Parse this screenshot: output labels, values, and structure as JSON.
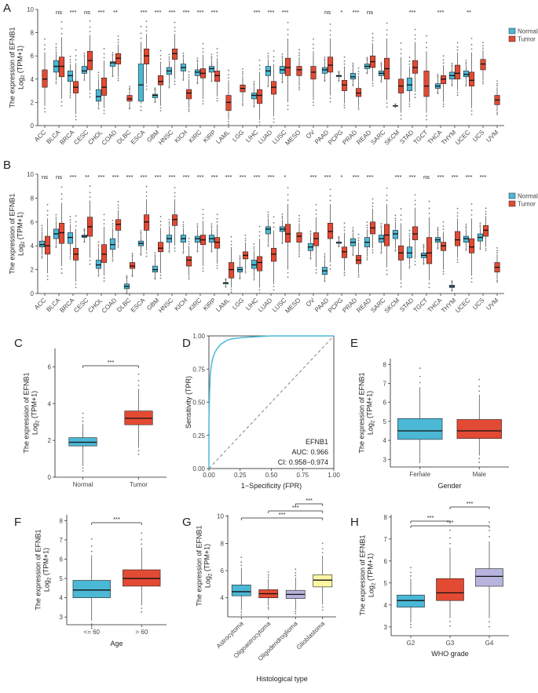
{
  "colors": {
    "normal": "#4bb8d6",
    "tumor": "#e34a33",
    "g2": "#4bb8d6",
    "g3": "#e34a33",
    "g4": "#b7b5de",
    "astro": "#4bb8d6",
    "oligoastro": "#e34a33",
    "oligodendro": "#b7b5de",
    "gbm": "#fbf6a3",
    "roc": "#4bb8d6"
  },
  "common": {
    "ylabel_line1": "The expression of EFNB1",
    "ylabel_log": "Log",
    "ylabel_sub": "2",
    "ylabel_tail": " (TPM+1)"
  },
  "chart_data": [
    {
      "panel": "A",
      "type": "boxplot",
      "ylim": [
        0,
        10
      ],
      "yticks": [
        0,
        2,
        4,
        6,
        8,
        10
      ],
      "legend": [
        "Normal",
        "Tumor"
      ],
      "categories": [
        "ACC",
        "BLCA",
        "BRCA",
        "CESC",
        "CHOL",
        "COAD",
        "DLBC",
        "ESCA",
        "GBM",
        "HNSC",
        "KICH",
        "KIRC",
        "KIRP",
        "LAML",
        "LGG",
        "LIHC",
        "LUAD",
        "LUSC",
        "MESO",
        "OV",
        "PAAD",
        "PCPG",
        "PRAD",
        "READ",
        "SARC",
        "SKCM",
        "STAD",
        "TGCT",
        "THCA",
        "THYM",
        "UCEC",
        "UCS",
        "UVM"
      ],
      "significance": [
        "",
        "ns",
        "***",
        "ns",
        "***",
        "**",
        "",
        "***",
        "***",
        "***",
        "***",
        "***",
        "***",
        "",
        "",
        "***",
        "***",
        "***",
        "",
        "",
        "ns",
        "*",
        "***",
        "ns",
        "",
        "",
        "***",
        "",
        "***",
        "",
        "**",
        "",
        ""
      ],
      "normal": [
        null,
        [
          3.9,
          4.6,
          5.1,
          5.6,
          6.4
        ],
        [
          2.7,
          3.8,
          4.3,
          4.7,
          5.3
        ],
        [
          4.1,
          4.5,
          4.7,
          5.1,
          5.8
        ],
        [
          1.7,
          2.1,
          2.5,
          3.1,
          4.0
        ],
        [
          4.4,
          5.1,
          5.4,
          5.5,
          5.9
        ],
        null,
        [
          1.9,
          2.1,
          3.5,
          5.3,
          7.2
        ],
        [
          2.1,
          2.4,
          2.6,
          2.7,
          3.0
        ],
        [
          3.5,
          4.4,
          4.7,
          5.0,
          5.6
        ],
        [
          4.1,
          4.7,
          5.0,
          5.3,
          5.8
        ],
        [
          3.8,
          4.3,
          4.6,
          4.8,
          5.4
        ],
        [
          4.0,
          4.6,
          4.9,
          5.1,
          5.7
        ],
        null,
        null,
        [
          1.8,
          2.3,
          2.6,
          2.8,
          3.4
        ],
        [
          3.6,
          4.3,
          4.7,
          5.1,
          5.7
        ],
        [
          3.9,
          4.5,
          4.8,
          5.1,
          5.7
        ],
        null,
        null,
        [
          4.0,
          4.5,
          4.8,
          5.0,
          5.5
        ],
        [
          3.9,
          4.2,
          4.3,
          4.3,
          4.5
        ],
        [
          3.6,
          4.0,
          4.2,
          4.5,
          5.0
        ],
        [
          4.6,
          4.9,
          5.1,
          5.3,
          5.6
        ],
        [
          3.9,
          4.3,
          4.5,
          4.7,
          5.1
        ],
        [
          1.6,
          1.7,
          1.7,
          1.7,
          1.8
        ],
        [
          2.0,
          3.0,
          3.5,
          4.1,
          5.1
        ],
        null,
        [
          2.9,
          3.2,
          3.4,
          3.6,
          4.1
        ],
        [
          3.6,
          4.0,
          4.3,
          4.6,
          5.0
        ],
        [
          3.6,
          4.2,
          4.4,
          4.7,
          5.2
        ],
        null,
        null
      ],
      "tumor": [
        [
          1.7,
          3.3,
          4.0,
          4.8,
          6.3
        ],
        [
          2.3,
          4.2,
          5.1,
          5.9,
          7.6
        ],
        [
          1.0,
          2.8,
          3.3,
          3.8,
          5.4
        ],
        [
          3.0,
          4.8,
          5.6,
          6.4,
          7.8
        ],
        [
          1.5,
          2.6,
          3.3,
          4.1,
          5.6
        ],
        [
          4.2,
          5.3,
          5.8,
          6.2,
          7.0
        ],
        [
          1.6,
          2.1,
          2.3,
          2.6,
          3.0
        ],
        [
          3.6,
          5.3,
          6.0,
          6.6,
          7.9
        ],
        [
          1.7,
          3.5,
          3.8,
          4.3,
          5.5
        ],
        [
          4.0,
          5.7,
          6.2,
          6.6,
          7.9
        ],
        [
          1.5,
          2.3,
          2.8,
          3.1,
          4.0
        ],
        [
          2.3,
          4.1,
          4.5,
          4.9,
          6.1
        ],
        [
          2.5,
          3.8,
          4.3,
          4.7,
          5.8
        ],
        [
          0.5,
          1.3,
          2.0,
          2.6,
          3.9
        ],
        [
          2.0,
          2.9,
          3.2,
          3.5,
          4.3
        ],
        [
          0.5,
          1.9,
          2.6,
          3.1,
          4.6
        ],
        [
          0.8,
          2.7,
          3.3,
          3.8,
          5.3
        ],
        [
          2.0,
          4.3,
          5.0,
          5.8,
          7.5
        ],
        [
          3.4,
          4.3,
          4.8,
          5.1,
          5.9
        ],
        [
          2.2,
          4.0,
          4.6,
          5.1,
          6.4
        ],
        [
          2.6,
          4.6,
          5.2,
          5.9,
          7.5
        ],
        [
          1.9,
          3.0,
          3.5,
          3.9,
          5.1
        ],
        [
          1.7,
          2.5,
          2.8,
          3.2,
          4.3
        ],
        [
          3.8,
          5.0,
          5.5,
          6.0,
          7.1
        ],
        [
          2.2,
          4.0,
          4.9,
          5.8,
          7.5
        ],
        [
          1.1,
          2.8,
          3.4,
          4.0,
          5.9
        ],
        [
          2.9,
          4.5,
          5.0,
          5.6,
          7.2
        ],
        [
          1.1,
          2.5,
          3.4,
          4.7,
          6.4
        ],
        [
          2.0,
          3.6,
          4.0,
          4.3,
          5.2
        ],
        [
          3.0,
          4.0,
          4.5,
          5.2,
          6.3
        ],
        [
          1.5,
          3.4,
          3.9,
          4.6,
          6.3
        ],
        [
          3.9,
          4.8,
          5.3,
          5.7,
          6.5
        ],
        [
          1.2,
          1.8,
          2.2,
          2.6,
          3.3
        ]
      ]
    },
    {
      "panel": "B",
      "type": "boxplot",
      "ylim": [
        0,
        10
      ],
      "yticks": [
        0,
        2,
        4,
        6,
        8,
        10
      ],
      "legend": [
        "Normal",
        "Tumor"
      ],
      "categories": [
        "ACC",
        "BLCA",
        "BRCA",
        "CESC",
        "CHOL",
        "COAD",
        "DLBC",
        "ESCA",
        "GBM",
        "HNSC",
        "KICH",
        "KIRC",
        "KIRP",
        "LAML",
        "LGG",
        "LIHC",
        "LUAD",
        "LUSC",
        "MESO",
        "OV",
        "PAAD",
        "PCPG",
        "PRAD",
        "READ",
        "SARC",
        "SKCM",
        "STAD",
        "TGCT",
        "THCA",
        "THYM",
        "UCEC",
        "UCS",
        "UVM"
      ],
      "significance": [
        "ns",
        "ns",
        "***",
        "**",
        "***",
        "***",
        "***",
        "***",
        "***",
        "***",
        "***",
        "***",
        "***",
        "***",
        "***",
        "***",
        "***",
        "*",
        "",
        "***",
        "***",
        "*",
        "***",
        "***",
        "",
        "***",
        "***",
        "ns",
        "***",
        "***",
        "***",
        "***",
        ""
      ],
      "normal": [
        [
          3.2,
          3.9,
          4.1,
          4.4,
          5.2
        ],
        [
          4.1,
          4.6,
          5.0,
          5.4,
          6.1
        ],
        [
          3.2,
          4.2,
          4.7,
          5.1,
          5.8
        ],
        [
          4.4,
          4.7,
          4.8,
          4.9,
          5.2
        ],
        [
          1.7,
          2.1,
          2.4,
          2.8,
          3.8
        ],
        [
          3.0,
          3.7,
          4.1,
          4.6,
          5.5
        ],
        [
          0.1,
          0.4,
          0.6,
          0.8,
          1.2
        ],
        [
          3.4,
          4.0,
          4.2,
          4.4,
          4.9
        ],
        [
          1.4,
          1.8,
          2.0,
          2.3,
          3.0
        ],
        [
          3.7,
          4.3,
          4.6,
          4.9,
          5.7
        ],
        [
          3.6,
          4.3,
          4.6,
          4.9,
          5.5
        ],
        [
          3.7,
          4.3,
          4.6,
          4.8,
          5.4
        ],
        [
          3.7,
          4.3,
          4.6,
          4.9,
          5.4
        ],
        [
          0.6,
          0.8,
          0.9,
          0.9,
          1.1
        ],
        [
          1.4,
          1.8,
          2.0,
          2.2,
          2.8
        ],
        [
          1.4,
          2.1,
          2.4,
          2.8,
          3.6
        ],
        [
          4.2,
          5.0,
          5.4,
          5.6,
          6.3
        ],
        [
          4.4,
          5.2,
          5.4,
          5.6,
          6.2
        ],
        null,
        [
          3.1,
          3.6,
          3.9,
          4.2,
          4.8
        ],
        [
          1.2,
          1.6,
          1.9,
          2.2,
          2.9
        ],
        [
          4.0,
          4.2,
          4.3,
          4.3,
          4.6
        ],
        [
          3.4,
          4.0,
          4.3,
          4.6,
          5.1
        ],
        [
          3.1,
          3.9,
          4.3,
          4.7,
          5.4
        ],
        [
          3.6,
          4.3,
          4.6,
          4.9,
          5.4
        ],
        [
          3.8,
          4.6,
          5.0,
          5.3,
          6.0
        ],
        [
          2.4,
          3.0,
          3.4,
          3.9,
          4.7
        ],
        [
          2.6,
          3.0,
          3.2,
          3.4,
          3.8
        ],
        [
          3.9,
          4.3,
          4.5,
          4.7,
          5.2
        ],
        [
          0.3,
          0.5,
          0.6,
          0.7,
          0.9
        ],
        [
          3.8,
          4.3,
          4.6,
          4.8,
          5.4
        ],
        [
          3.9,
          4.4,
          4.7,
          5.0,
          5.5
        ],
        null
      ],
      "tumor": [
        [
          1.7,
          3.3,
          4.0,
          4.8,
          6.3
        ],
        [
          2.3,
          4.2,
          5.1,
          5.9,
          7.6
        ],
        [
          1.0,
          2.8,
          3.3,
          3.8,
          5.4
        ],
        [
          3.0,
          4.8,
          5.6,
          6.4,
          7.8
        ],
        [
          1.5,
          2.6,
          3.3,
          4.1,
          5.6
        ],
        [
          4.2,
          5.3,
          5.8,
          6.2,
          7.0
        ],
        [
          1.6,
          2.1,
          2.3,
          2.6,
          3.0
        ],
        [
          3.6,
          5.3,
          6.0,
          6.6,
          7.9
        ],
        [
          1.7,
          3.5,
          3.8,
          4.3,
          5.5
        ],
        [
          4.0,
          5.7,
          6.2,
          6.6,
          7.9
        ],
        [
          1.5,
          2.3,
          2.8,
          3.1,
          4.0
        ],
        [
          2.3,
          4.1,
          4.5,
          4.9,
          6.1
        ],
        [
          2.5,
          3.8,
          4.3,
          4.7,
          5.8
        ],
        [
          0.5,
          1.3,
          2.0,
          2.6,
          3.9
        ],
        [
          2.0,
          2.9,
          3.2,
          3.5,
          4.3
        ],
        [
          0.5,
          1.9,
          2.6,
          3.1,
          4.6
        ],
        [
          0.8,
          2.7,
          3.3,
          3.8,
          5.3
        ],
        [
          2.0,
          4.3,
          5.0,
          5.8,
          7.5
        ],
        [
          3.4,
          4.3,
          4.8,
          5.1,
          5.9
        ],
        [
          2.2,
          4.0,
          4.6,
          5.1,
          6.4
        ],
        [
          2.6,
          4.6,
          5.2,
          5.9,
          7.5
        ],
        [
          1.9,
          3.0,
          3.5,
          3.9,
          5.1
        ],
        [
          1.7,
          2.5,
          2.8,
          3.2,
          4.3
        ],
        [
          3.8,
          5.0,
          5.5,
          6.0,
          7.1
        ],
        [
          2.2,
          4.0,
          4.9,
          5.8,
          7.5
        ],
        [
          1.1,
          2.8,
          3.4,
          4.0,
          5.9
        ],
        [
          2.9,
          4.5,
          5.0,
          5.6,
          7.2
        ],
        [
          1.1,
          2.5,
          3.4,
          4.7,
          6.4
        ],
        [
          2.0,
          3.6,
          4.0,
          4.3,
          5.2
        ],
        [
          3.0,
          4.0,
          4.5,
          5.2,
          6.3
        ],
        [
          1.5,
          3.4,
          3.9,
          4.6,
          6.3
        ],
        [
          3.9,
          4.8,
          5.3,
          5.7,
          6.5
        ],
        [
          1.2,
          1.8,
          2.2,
          2.6,
          3.3
        ]
      ]
    },
    {
      "panel": "C",
      "type": "boxplot",
      "ylim": [
        0,
        7
      ],
      "yticks": [
        0,
        2,
        4,
        6
      ],
      "categories": [
        "Normal",
        "Tumor"
      ],
      "colorKeys": [
        "normal",
        "tumor"
      ],
      "boxes": [
        [
          0.6,
          1.7,
          1.9,
          2.15,
          2.9
        ],
        [
          1.6,
          2.85,
          3.2,
          3.6,
          4.8
        ]
      ],
      "comparisons": [
        {
          "from": 0,
          "to": 1,
          "label": "***"
        }
      ]
    },
    {
      "panel": "D",
      "type": "roc",
      "xlabel": "1−Specificity (FPR)",
      "ylabel": "Sensitivity (TPR)",
      "xticks": [
        "0.00",
        "0.25",
        "0.50",
        "0.75",
        "1.00"
      ],
      "yticks": [
        "0.00",
        "0.25",
        "0.50",
        "0.75",
        "1.00"
      ],
      "fpr": [
        0,
        0,
        0.005,
        0.01,
        0.02,
        0.03,
        0.05,
        0.07,
        0.1,
        0.15,
        0.2,
        0.3,
        0.5,
        0.75,
        1
      ],
      "tpr": [
        0,
        0.35,
        0.55,
        0.7,
        0.78,
        0.83,
        0.88,
        0.91,
        0.94,
        0.97,
        0.98,
        0.99,
        1,
        1,
        1
      ],
      "annotation": [
        "EFNB1",
        "AUC: 0.966",
        "CI: 0.958−0.974"
      ]
    },
    {
      "panel": "E",
      "type": "boxplot",
      "xlabel": "Gender",
      "ylim": [
        2.6,
        8.3
      ],
      "yticks": [
        3,
        4,
        5,
        6,
        7,
        8
      ],
      "categories": [
        "Female",
        "Male"
      ],
      "colorKeys": [
        "normal",
        "tumor"
      ],
      "boxes": [
        [
          2.8,
          4.05,
          4.5,
          5.15,
          6.8
        ],
        [
          3.2,
          4.1,
          4.5,
          5.1,
          6.4
        ]
      ],
      "comparisons": []
    },
    {
      "panel": "F",
      "type": "boxplot",
      "xlabel": "Age",
      "ylim": [
        2.6,
        8.3
      ],
      "yticks": [
        3,
        4,
        5,
        6,
        7,
        8
      ],
      "categories": [
        "<= 60",
        "> 60"
      ],
      "colorKeys": [
        "normal",
        "tumor"
      ],
      "boxes": [
        [
          2.8,
          4.0,
          4.4,
          4.9,
          6.2
        ],
        [
          3.6,
          4.6,
          5.0,
          5.45,
          6.6
        ]
      ],
      "comparisons": [
        {
          "from": 0,
          "to": 1,
          "label": "***"
        }
      ]
    },
    {
      "panel": "G",
      "type": "boxplot",
      "xlabel": "Histological type",
      "ylim": [
        2.6,
        10.1
      ],
      "yticks": [
        4,
        6,
        8,
        10
      ],
      "categories": [
        "Astrocytoma",
        "Oligoastrocytoma",
        "Oligodendroglioma",
        "Glioblastoma"
      ],
      "colorKeys": [
        "astro",
        "oligoastro",
        "oligodendro",
        "gbm"
      ],
      "boxes": [
        [
          3.1,
          4.15,
          4.45,
          4.95,
          6.2
        ],
        [
          3.4,
          4.0,
          4.3,
          4.6,
          5.4
        ],
        [
          3.1,
          3.95,
          4.25,
          4.55,
          5.5
        ],
        [
          3.5,
          4.8,
          5.3,
          5.7,
          7.1
        ]
      ],
      "comparisons": [
        {
          "from": 0,
          "to": 3,
          "label": "***"
        },
        {
          "from": 1,
          "to": 3,
          "label": "***"
        },
        {
          "from": 2,
          "to": 3,
          "label": "***"
        }
      ]
    },
    {
      "panel": "H",
      "type": "boxplot",
      "xlabel": "WHO grade",
      "ylim": [
        2.6,
        8.1
      ],
      "yticks": [
        3,
        4,
        5,
        6,
        7,
        8
      ],
      "categories": [
        "G2",
        "G3",
        "G4"
      ],
      "colorKeys": [
        "g2",
        "g3",
        "g4"
      ],
      "boxes": [
        [
          3.2,
          3.9,
          4.2,
          4.45,
          5.2
        ],
        [
          3.4,
          4.2,
          4.55,
          5.2,
          6.6
        ],
        [
          3.4,
          4.85,
          5.3,
          5.65,
          6.9
        ]
      ],
      "comparisons": [
        {
          "from": 0,
          "to": 2,
          "label": "***"
        },
        {
          "from": 0,
          "to": 1,
          "label": "***"
        },
        {
          "from": 1,
          "to": 2,
          "label": "***"
        }
      ]
    }
  ]
}
